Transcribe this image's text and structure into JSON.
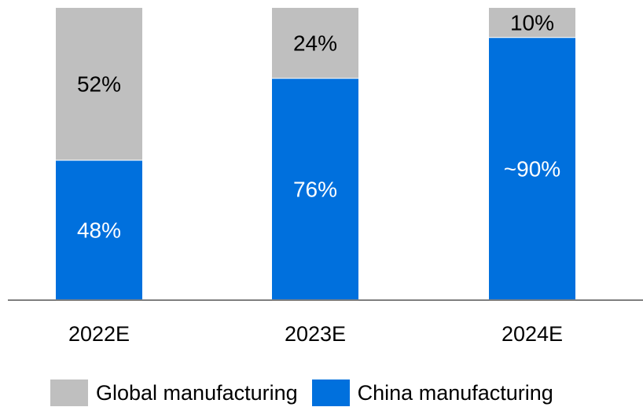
{
  "chart_data": {
    "type": "bar",
    "stacked": true,
    "normalized": true,
    "categories": [
      "2022E",
      "2023E",
      "2024E"
    ],
    "ylim": [
      0,
      100
    ],
    "series": [
      {
        "name": "China manufacturing",
        "color": "#0070DD",
        "values": [
          48,
          76,
          90
        ],
        "labels": [
          "48%",
          "76%",
          "~90%"
        ]
      },
      {
        "name": "Global manufacturing",
        "color": "#BFBFBF",
        "values": [
          52,
          24,
          10
        ],
        "labels": [
          "52%",
          "24%",
          "10%"
        ]
      }
    ],
    "legend": {
      "position": "bottom",
      "items": [
        "Global manufacturing",
        "China manufacturing"
      ]
    },
    "grid": false
  }
}
